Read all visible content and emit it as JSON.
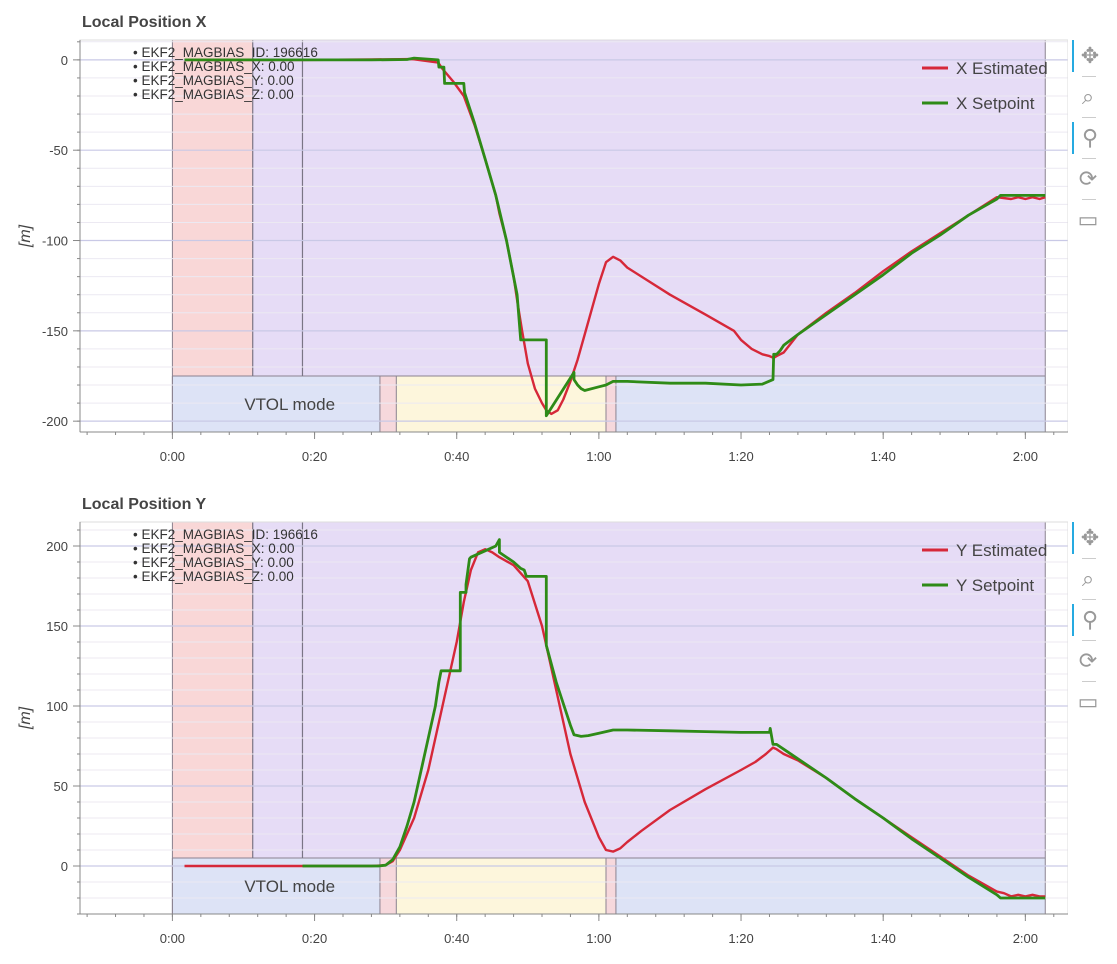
{
  "colors": {
    "estimated": "#d62839",
    "setpoint": "#2e8b17",
    "flight_mode_red": "#f9d7d7",
    "flight_mode_purple": "#e6dcf6",
    "vtol_mc_blue": "#dde3f6",
    "vtol_trans_pink": "#f6d8dc",
    "vtol_fw_yellow": "#fdf6dc",
    "grid": "#e5e5e5",
    "axis": "#888888"
  },
  "toolbar": {
    "tools": [
      {
        "name": "pan",
        "icon": "pan-icon",
        "glyph": "✥",
        "active": true
      },
      {
        "name": "box-zoom",
        "icon": "box-zoom-icon",
        "glyph": "⌕",
        "active": false
      },
      {
        "name": "wheel-zoom",
        "icon": "wheel-zoom-icon",
        "glyph": "⚲",
        "active": true
      },
      {
        "name": "reset",
        "icon": "reset-icon",
        "glyph": "⟳",
        "active": false
      },
      {
        "name": "save",
        "icon": "save-icon",
        "glyph": "▭",
        "active": false
      }
    ]
  },
  "chart_data": [
    {
      "type": "line",
      "title": "Local Position X",
      "xlabel": "",
      "ylabel": "[m]",
      "xlim": [
        -13,
        126
      ],
      "ylim": [
        -206,
        11
      ],
      "x_ticks": [
        0,
        20,
        40,
        60,
        80,
        100,
        120
      ],
      "x_tick_labels": [
        "0:00",
        "0:20",
        "0:40",
        "1:00",
        "1:20",
        "1:40",
        "2:00"
      ],
      "y_ticks": [
        0,
        -50,
        -100,
        -150,
        -200
      ],
      "y_tick_labels": [
        "0",
        "-50",
        "-100",
        "-150",
        "-200"
      ],
      "legend_position": "top-right",
      "parameter_text": [
        "• EKF2_MAGBIAS_ID: 196616",
        "• EKF2_MAGBIAS_X: 0.00",
        "• EKF2_MAGBIAS_Y: 0.00",
        "• EKF2_MAGBIAS_Z: 0.00"
      ],
      "flight_mode_bands": [
        {
          "start": 0,
          "end": 11.3,
          "color": "red"
        },
        {
          "start": 11.3,
          "end": 122.8,
          "color": "purple"
        }
      ],
      "mode_change_lines": [
        11.3,
        18.3
      ],
      "vtol_bands": [
        {
          "start": 0,
          "end": 29.2,
          "color": "blue"
        },
        {
          "start": 29.2,
          "end": 31.5,
          "color": "pink"
        },
        {
          "start": 31.5,
          "end": 61.0,
          "color": "yellow"
        },
        {
          "start": 61.0,
          "end": 62.4,
          "color": "pink"
        },
        {
          "start": 62.4,
          "end": 122.8,
          "color": "blue"
        }
      ],
      "vtol_label": "VTOL mode",
      "series": [
        {
          "name": "X Estimated",
          "x": [
            1.7,
            18.3,
            28,
            33.3,
            34,
            37.4,
            38,
            39.5,
            41,
            42.5,
            44,
            45.5,
            46,
            47,
            48,
            48.5,
            49.2,
            50,
            51,
            52,
            52.6,
            53.3,
            54.2,
            55,
            56,
            57,
            58,
            59,
            60,
            61,
            62,
            63,
            64,
            70,
            75,
            79,
            80,
            81.5,
            83,
            84,
            84.6,
            85,
            86,
            88,
            92,
            96,
            100,
            104,
            108,
            112,
            116,
            118,
            119,
            120,
            121,
            122,
            122.8
          ],
          "y": [
            0,
            0,
            0.2,
            0.4,
            0.3,
            -1.5,
            -5,
            -12,
            -20,
            -36,
            -55,
            -75,
            -85,
            -100,
            -120,
            -133,
            -150,
            -168,
            -182,
            -190,
            -194,
            -196,
            -194,
            -188,
            -178,
            -166,
            -152,
            -138,
            -124,
            -112,
            -109,
            -111,
            -115,
            -130,
            -141,
            -150,
            -155,
            -160,
            -163,
            -164,
            -165,
            -164,
            -162,
            -152,
            -140,
            -129,
            -117,
            -106,
            -96,
            -86,
            -76,
            -77,
            -76,
            -77,
            -76,
            -77,
            -76
          ]
        },
        {
          "name": "X Setpoint",
          "x": [
            1.7,
            18.3,
            28,
            33,
            34,
            37.4,
            37.5,
            38.2,
            38.3,
            41,
            41.1,
            42.5,
            44,
            45.5,
            47,
            48.5,
            49,
            52.6,
            52.6,
            56.5,
            56.5,
            57,
            57.5,
            58,
            60,
            61,
            62,
            64,
            70,
            75,
            80,
            83,
            84.5,
            84.6,
            85,
            85.5,
            86,
            88,
            92,
            96,
            100,
            104,
            108,
            112,
            116,
            116.5,
            122.8
          ],
          "y": [
            0,
            0,
            0,
            0.2,
            1,
            0,
            -4,
            -4,
            -13,
            -13,
            -18,
            -35,
            -55,
            -75,
            -100,
            -130,
            -155,
            -155,
            -197,
            -173,
            -177,
            -180,
            -182,
            -183,
            -181,
            -180,
            -178,
            -178,
            -179,
            -179,
            -180,
            -179.5,
            -177,
            -163,
            -163,
            -161,
            -158,
            -152,
            -141,
            -130,
            -119,
            -107,
            -97,
            -86,
            -77,
            -75,
            -75
          ]
        }
      ]
    },
    {
      "type": "line",
      "title": "Local Position Y",
      "xlabel": "",
      "ylabel": "[m]",
      "xlim": [
        -13,
        126
      ],
      "ylim": [
        -30,
        215
      ],
      "x_ticks": [
        0,
        20,
        40,
        60,
        80,
        100,
        120
      ],
      "x_tick_labels": [
        "0:00",
        "0:20",
        "0:40",
        "1:00",
        "1:20",
        "1:40",
        "2:00"
      ],
      "y_ticks": [
        200,
        150,
        100,
        50,
        0
      ],
      "y_tick_labels": [
        "200",
        "150",
        "100",
        "50",
        "0"
      ],
      "legend_position": "top-right",
      "parameter_text": [
        "• EKF2_MAGBIAS_ID: 196616",
        "• EKF2_MAGBIAS_X: 0.00",
        "• EKF2_MAGBIAS_Y: 0.00",
        "• EKF2_MAGBIAS_Z: 0.00"
      ],
      "flight_mode_bands": [
        {
          "start": 0,
          "end": 11.3,
          "color": "red"
        },
        {
          "start": 11.3,
          "end": 122.8,
          "color": "purple"
        }
      ],
      "mode_change_lines": [
        11.3,
        18.3
      ],
      "vtol_bands": [
        {
          "start": 0,
          "end": 29.2,
          "color": "blue"
        },
        {
          "start": 29.2,
          "end": 31.5,
          "color": "pink"
        },
        {
          "start": 31.5,
          "end": 61.0,
          "color": "yellow"
        },
        {
          "start": 61.0,
          "end": 62.4,
          "color": "pink"
        },
        {
          "start": 62.4,
          "end": 122.8,
          "color": "blue"
        }
      ],
      "vtol_label": "VTOL mode",
      "series": [
        {
          "name": "Y Estimated",
          "x": [
            1.7,
            18.3,
            28,
            30,
            31,
            32,
            34,
            36,
            38,
            40,
            41,
            42,
            43,
            44,
            45,
            46,
            48,
            50,
            52,
            54,
            56,
            58,
            60,
            61,
            62,
            63,
            64,
            66,
            70,
            75,
            80,
            82,
            83.5,
            84.5,
            85,
            86,
            88,
            92,
            96,
            100,
            104,
            108,
            112,
            116,
            117,
            118,
            119,
            120,
            121,
            122,
            122.8
          ],
          "y": [
            0,
            0,
            0,
            0.5,
            3,
            10,
            30,
            60,
            100,
            140,
            165,
            185,
            196,
            198,
            196,
            193,
            188,
            178,
            150,
            110,
            70,
            40,
            18,
            10,
            9,
            11,
            15,
            22,
            35,
            48,
            60,
            65,
            70,
            74,
            73,
            70,
            66,
            55,
            42,
            30,
            18,
            6,
            -6,
            -16,
            -17,
            -19,
            -18,
            -19,
            -18,
            -19,
            -19
          ]
        },
        {
          "name": "Y Setpoint",
          "x": [
            18.3,
            28,
            29,
            30,
            31,
            32,
            33,
            34,
            35,
            36,
            37,
            37.5,
            37.8,
            40.5,
            40.5,
            41.3,
            41.3,
            41.8,
            42,
            44,
            45.5,
            46,
            46,
            48,
            49,
            49.5,
            49.8,
            52.6,
            52.6,
            54,
            56,
            56.5,
            57.5,
            58.5,
            60,
            62,
            64,
            70,
            75,
            80,
            84,
            84.1,
            84.5,
            85,
            86,
            88,
            92,
            96,
            100,
            104,
            108,
            112,
            116,
            116.5,
            122.8
          ],
          "y": [
            0,
            0,
            0,
            0.5,
            4,
            12,
            25,
            40,
            60,
            80,
            100,
            115,
            122,
            122,
            171,
            171,
            176,
            192,
            193,
            197,
            200,
            204,
            196,
            190,
            186,
            185,
            181,
            181,
            138,
            115,
            88,
            82,
            81,
            81.5,
            83,
            85,
            85,
            84.5,
            84,
            83.5,
            83.5,
            86,
            76,
            76,
            73,
            67,
            55,
            42,
            30,
            17,
            5,
            -7,
            -18,
            -20,
            -20
          ]
        }
      ]
    }
  ]
}
